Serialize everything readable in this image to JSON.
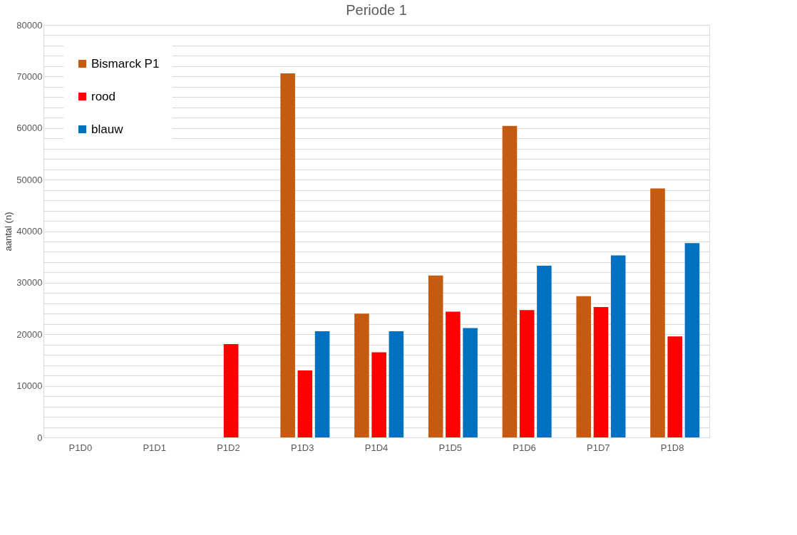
{
  "chart_data": {
    "type": "bar",
    "title": "Periode 1",
    "ylabel": "aantal (n)",
    "categories": [
      "P1D0",
      "P1D1",
      "P1D2",
      "P1D3",
      "P1D4",
      "P1D5",
      "P1D6",
      "P1D7",
      "P1D8"
    ],
    "series": [
      {
        "name": "Bismarck P1",
        "color": "#c55a11",
        "values": [
          null,
          null,
          null,
          70600,
          24000,
          31400,
          60400,
          27400,
          48300
        ]
      },
      {
        "name": "rood",
        "color": "#ff0000",
        "values": [
          null,
          null,
          18100,
          13000,
          16500,
          24400,
          24700,
          25300,
          19600
        ]
      },
      {
        "name": "blauw",
        "color": "#0070c0",
        "values": [
          null,
          null,
          null,
          20600,
          20600,
          21200,
          33300,
          35300,
          37700
        ]
      }
    ],
    "ylim": [
      0,
      80000
    ],
    "yticks": [
      0,
      {
        "value": 2000,
        "label": null
      },
      {
        "value": 4000,
        "label": null
      },
      {
        "value": 6000,
        "label": null
      },
      {
        "value": 8000,
        "label": null
      },
      10000,
      {
        "value": 12000,
        "label": null
      },
      {
        "value": 14000,
        "label": null
      },
      {
        "value": 16000,
        "label": null
      },
      {
        "value": 18000,
        "label": null
      },
      20000,
      {
        "value": 22000,
        "label": null
      },
      {
        "value": 24000,
        "label": null
      },
      {
        "value": 26000,
        "label": null
      },
      {
        "value": 28000,
        "label": null
      },
      30000,
      {
        "value": 32000,
        "label": null
      },
      {
        "value": 34000,
        "label": null
      },
      {
        "value": 36000,
        "label": null
      },
      {
        "value": 38000,
        "label": null
      },
      40000,
      {
        "value": 42000,
        "label": null
      },
      {
        "value": 44000,
        "label": null
      },
      {
        "value": 46000,
        "label": null
      },
      {
        "value": 48000,
        "label": null
      },
      50000,
      {
        "value": 52000,
        "label": null
      },
      {
        "value": 54000,
        "label": null
      },
      {
        "value": 56000,
        "label": null
      },
      {
        "value": 58000,
        "label": null
      },
      60000,
      {
        "value": 62000,
        "label": null
      },
      {
        "value": 64000,
        "label": null
      },
      {
        "value": 66000,
        "label": null
      },
      {
        "value": 68000,
        "label": null
      },
      70000,
      {
        "value": 72000,
        "label": null
      },
      {
        "value": 74000,
        "label": null
      },
      {
        "value": 76000,
        "label": null
      },
      {
        "value": 78000,
        "label": null
      },
      80000
    ],
    "grid": "y",
    "legend": "top left"
  }
}
